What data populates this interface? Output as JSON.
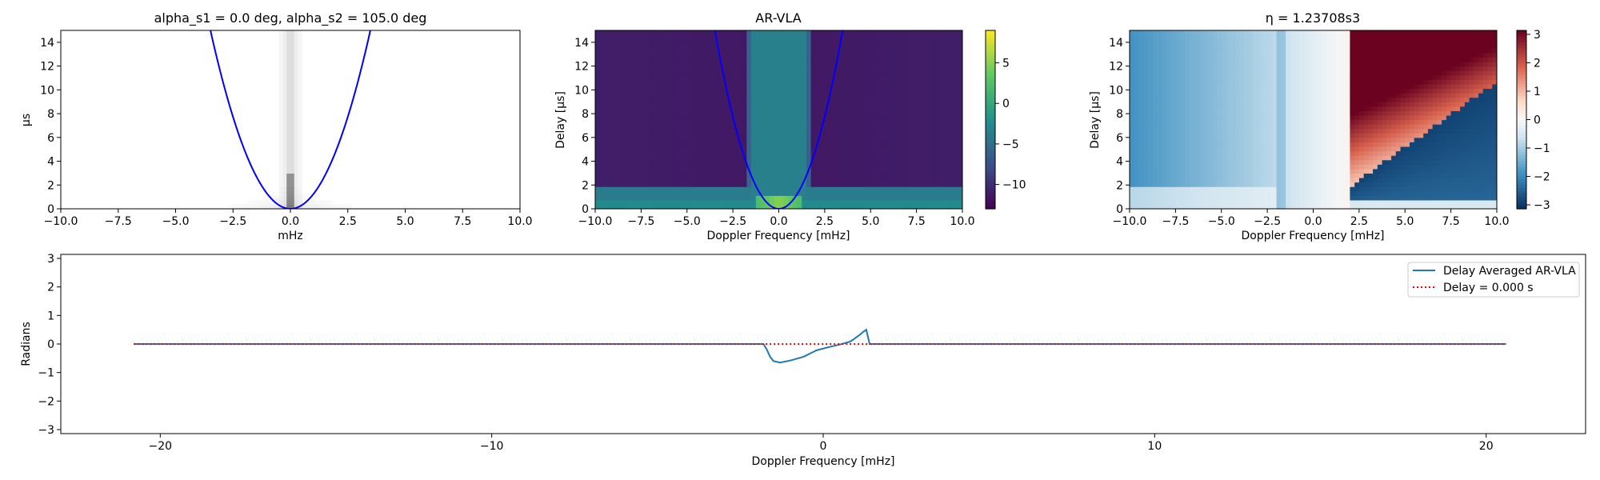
{
  "colors": {
    "curve": "#0000ff",
    "series_line": "#1f77b4",
    "delay_line": "#ff0000",
    "viridis_low": "#440154",
    "viridis_high": "#fde725"
  },
  "chart_data": [
    {
      "type": "heatmap",
      "panel": "top-left",
      "title": "alpha_s1 = 0.0 deg, alpha_s2 = 105.0 deg",
      "xlabel": "mHz",
      "ylabel": "μs",
      "xlim": [
        -10,
        10
      ],
      "ylim": [
        0,
        15
      ],
      "x_ticks": [
        "−10.0",
        "−7.5",
        "−5.0",
        "−2.5",
        "0.0",
        "2.5",
        "5.0",
        "7.5",
        "10.0"
      ],
      "y_ticks": [
        "0",
        "2",
        "4",
        "6",
        "8",
        "10",
        "12",
        "14"
      ],
      "colormap": "gray_r",
      "curve": {
        "color": "blue",
        "equation": "y = 1.23708 x^2"
      },
      "grid": false
    },
    {
      "type": "heatmap",
      "panel": "top-middle",
      "title": "AR-VLA",
      "xlabel": "Doppler Frequency [mHz]",
      "ylabel": "Delay [μs]",
      "xlim": [
        -10,
        10
      ],
      "ylim": [
        0,
        15
      ],
      "x_ticks": [
        "−10.0",
        "−7.5",
        "−5.0",
        "−2.5",
        "0.0",
        "2.5",
        "5.0",
        "7.5",
        "10.0"
      ],
      "y_ticks": [
        "0",
        "2",
        "4",
        "6",
        "8",
        "10",
        "12",
        "14"
      ],
      "colormap": "viridis",
      "colorbar": {
        "range": [
          -13,
          9
        ],
        "ticks": [
          "5",
          "0",
          "−5",
          "−10"
        ]
      },
      "curve": {
        "color": "blue",
        "equation": "y = 1.23708 x^2"
      },
      "grid": false
    },
    {
      "type": "heatmap",
      "panel": "top-right",
      "title": "η = 1.23708s3",
      "xlabel": "Doppler Frequency [mHz]",
      "ylabel": "Delay [μs]",
      "xlim": [
        -10,
        10
      ],
      "ylim": [
        0,
        15
      ],
      "x_ticks": [
        "−10.0",
        "−7.5",
        "−5.0",
        "−2.5",
        "0.0",
        "2.5",
        "5.0",
        "7.5",
        "10.0"
      ],
      "y_ticks": [
        "0",
        "2",
        "4",
        "6",
        "8",
        "10",
        "12",
        "14"
      ],
      "colormap": "RdBu",
      "colorbar": {
        "range": [
          -3.14,
          3.14
        ],
        "ticks": [
          "3",
          "2",
          "1",
          "0",
          "−1",
          "−2",
          "−3"
        ]
      },
      "grid": false
    },
    {
      "type": "line",
      "panel": "bottom",
      "xlabel": "Doppler Frequency [mHz]",
      "ylabel": "Radians",
      "xlim": [
        -23,
        23
      ],
      "ylim": [
        -3.14,
        3.14
      ],
      "x_ticks": [
        "−20",
        "−10",
        "0",
        "10",
        "20"
      ],
      "y_ticks": [
        "3",
        "2",
        "1",
        "0",
        "−1",
        "−2",
        "−3"
      ],
      "legend_position": "top-right",
      "grid": false,
      "series": [
        {
          "name": "Delay Averaged  AR-VLA",
          "style": "solid",
          "x": [
            -20.8,
            -1.8,
            -1.7,
            -1.6,
            -1.5,
            -1.3,
            -1.0,
            -0.6,
            -0.2,
            0.2,
            0.5,
            0.8,
            0.9,
            1.1,
            1.2,
            1.3,
            1.4,
            1.6,
            20.6
          ],
          "y": [
            0.0,
            0.0,
            -0.2,
            -0.45,
            -0.6,
            -0.65,
            -0.58,
            -0.45,
            -0.22,
            -0.1,
            -0.02,
            0.08,
            0.15,
            0.32,
            0.42,
            0.5,
            0.0,
            0.0,
            0.0
          ]
        },
        {
          "name": "Delay = 0.000 s",
          "style": "dotted",
          "x": [
            -20.8,
            20.6
          ],
          "y": [
            0.0,
            0.0
          ]
        }
      ]
    }
  ]
}
